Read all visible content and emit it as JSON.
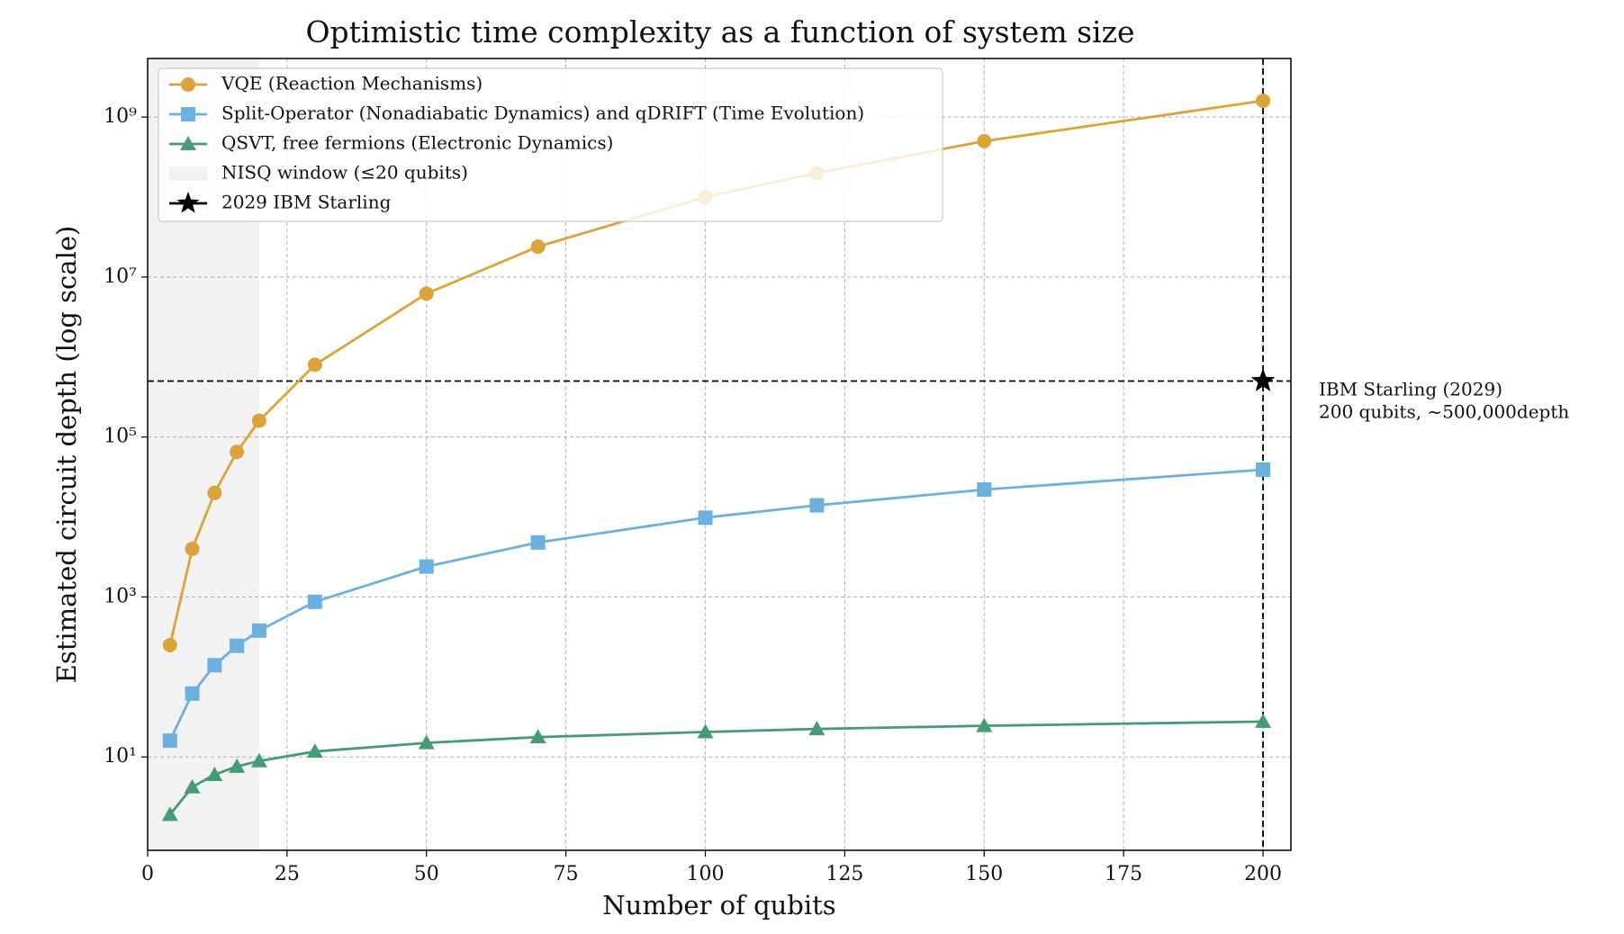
{
  "chart_data": {
    "type": "line",
    "title": "Optimistic time complexity as a function of system size",
    "xlabel": "Number of qubits",
    "ylabel": "Estimated circuit depth (log scale)",
    "xlim": [
      0,
      205
    ],
    "xticks": [
      0,
      25,
      50,
      75,
      100,
      125,
      150,
      175,
      200
    ],
    "ylim": [
      0.68,
      5400000000
    ],
    "log_y": true,
    "grid": true,
    "yticks": [
      {
        "value": 10,
        "label": "10¹"
      },
      {
        "value": 1000,
        "label": "10³"
      },
      {
        "value": 100000,
        "label": "10⁵"
      },
      {
        "value": 10000000,
        "label": "10⁷"
      },
      {
        "value": 1000000000,
        "label": "10⁹"
      }
    ],
    "x": [
      4,
      8,
      12,
      16,
      20,
      30,
      50,
      70,
      100,
      120,
      150,
      200
    ],
    "series": [
      {
        "name": "VQE (Reaction Mechanisms)",
        "color": "#dba33a",
        "marker": "circle",
        "values": [
          250,
          4000,
          20000,
          65000,
          160000,
          800000,
          6200000,
          24000000,
          100000000,
          200000000,
          500000000,
          1600000000
        ]
      },
      {
        "name": "Split-Operator (Nonadiabatic Dynamics) and qDRIFT (Time Evolution)",
        "color": "#6cb0e0",
        "marker": "square",
        "values": [
          16,
          62,
          140,
          245,
          380,
          870,
          2400,
          4800,
          9800,
          14000,
          22000,
          39000
        ]
      },
      {
        "name": "QSVT, free fermions (Electronic Dynamics)",
        "color": "#459b73",
        "marker": "triangle",
        "values": [
          1.9,
          4.2,
          6,
          7.6,
          8.9,
          11.7,
          15,
          17.7,
          20.5,
          22.4,
          24.5,
          27.7
        ]
      }
    ],
    "nisq_window": {
      "label": "NISQ window (≤20 qubits)",
      "xlim": [
        0,
        20
      ],
      "color": "#f2f2f2"
    },
    "starling": {
      "label": "2029 IBM Starling",
      "x": 200,
      "y": 500000,
      "color": "#000000"
    },
    "annotation": [
      "IBM Starling (2029)",
      "200 qubits, ~500,000depth"
    ],
    "legend": "upper left"
  }
}
